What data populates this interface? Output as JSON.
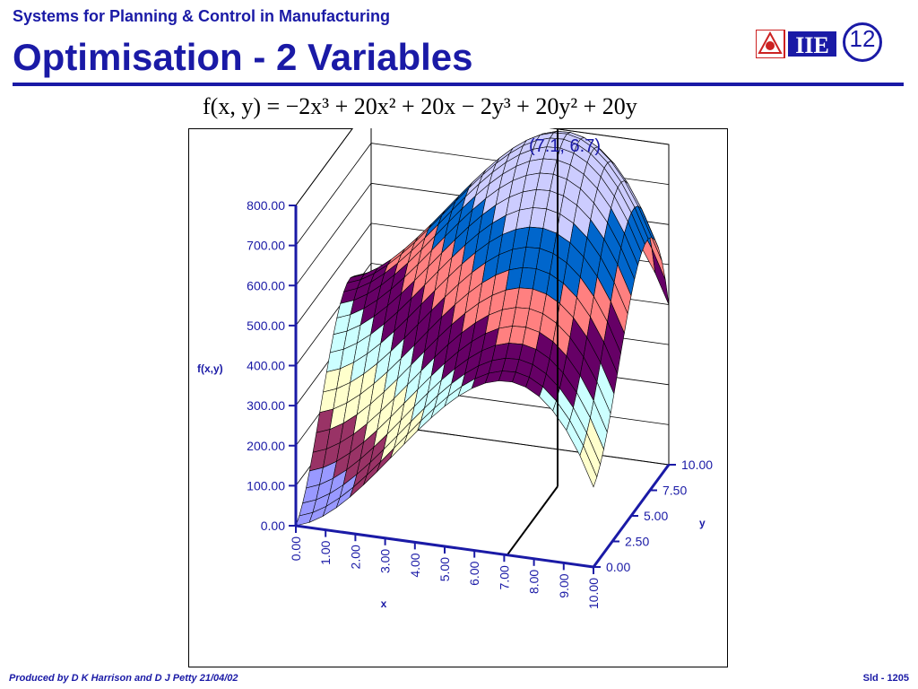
{
  "slide": {
    "subtitle": "Systems for Planning & Control in Manufacturing",
    "title": "Optimisation - 2 Variables",
    "slide_number": "12",
    "logo_text": "IIE",
    "formula_text": "f(x, y) = −2x³ + 20x² + 20x − 2y³ + 20y² + 20y",
    "footer_left": "Produced by D K Harrison and D J Petty 21/04/02",
    "footer_right": "Sld - 1205",
    "brand_color": "#1a1aa6"
  },
  "chart_data": {
    "type": "surface",
    "function": "f(x, y) = -2x^3 + 20x^2 + 20x - 2y^3 + 20y^2 + 20y",
    "xlabel": "x",
    "ylabel": "y",
    "zlabel": "f(x,y)",
    "x_ticks": [
      "0.00",
      "1.00",
      "2.00",
      "3.00",
      "4.00",
      "5.00",
      "6.00",
      "7.00",
      "8.00",
      "9.00",
      "10.00"
    ],
    "y_ticks": [
      "0.00",
      "2.50",
      "5.00",
      "7.50",
      "10.00"
    ],
    "z_ticks": [
      "0.00",
      "100.00",
      "200.00",
      "300.00",
      "400.00",
      "500.00",
      "600.00",
      "700.00",
      "800.00"
    ],
    "xlim": [
      0,
      10
    ],
    "ylim": [
      0,
      10
    ],
    "zlim": [
      0,
      800
    ],
    "band_colors": [
      "#9999ff",
      "#993366",
      "#ffffcc",
      "#ccffff",
      "#660066",
      "#ff8080",
      "#0066cc",
      "#ccccff"
    ],
    "band_ranges": [
      [
        0,
        100
      ],
      [
        100,
        200
      ],
      [
        200,
        300
      ],
      [
        300,
        400
      ],
      [
        400,
        500
      ],
      [
        500,
        600
      ],
      [
        600,
        700
      ],
      [
        700,
        800
      ]
    ],
    "annotation": {
      "label": "(7.1, 6.7)",
      "x": 7.1,
      "y": 6.7
    },
    "grid": true
  }
}
